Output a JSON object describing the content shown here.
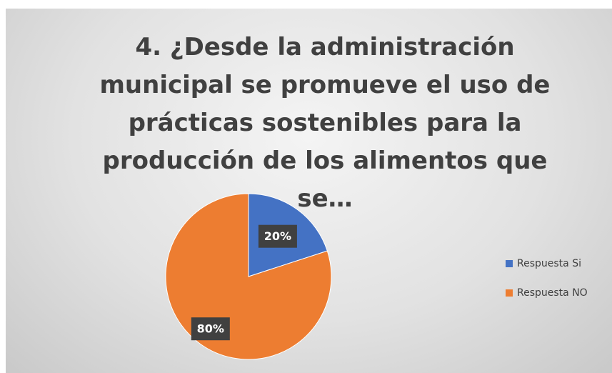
{
  "chart_data": {
    "type": "pie",
    "title": "4. ¿Desde la administración municipal se promueve el uso de prácticas sostenibles para la producción de los alimentos que se…",
    "categories": [
      "Respuesta Si",
      "Respuesta NO"
    ],
    "values": [
      20,
      80
    ],
    "value_labels": [
      "20%",
      "80%"
    ],
    "colors": [
      "#4472c4",
      "#ed7d31"
    ],
    "legend": "right"
  }
}
